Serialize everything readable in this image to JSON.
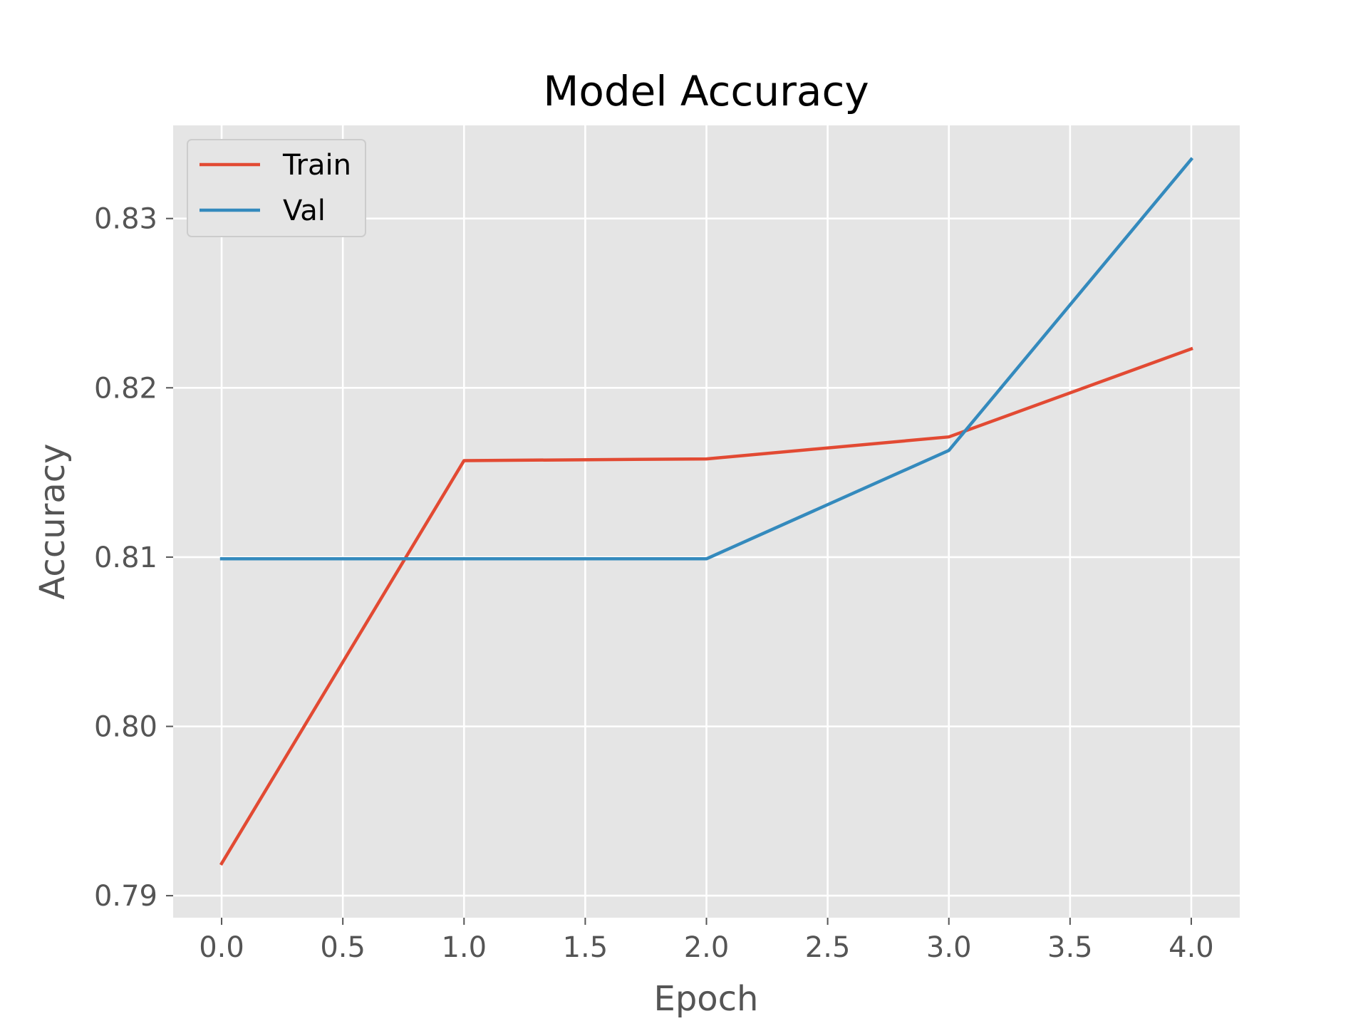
{
  "chart_data": {
    "type": "line",
    "title": "Model Accuracy",
    "xlabel": "Epoch",
    "ylabel": "Accuracy",
    "x": [
      0,
      1,
      2,
      3,
      4
    ],
    "xlim": [
      -0.2,
      4.2
    ],
    "ylim": [
      0.7887,
      0.8355
    ],
    "xticks": [
      0.0,
      0.5,
      1.0,
      1.5,
      2.0,
      2.5,
      3.0,
      3.5,
      4.0
    ],
    "xtick_labels": [
      "0.0",
      "0.5",
      "1.0",
      "1.5",
      "2.0",
      "2.5",
      "3.0",
      "3.5",
      "4.0"
    ],
    "yticks": [
      0.79,
      0.8,
      0.81,
      0.82,
      0.83
    ],
    "ytick_labels": [
      "0.79",
      "0.80",
      "0.81",
      "0.82",
      "0.83"
    ],
    "grid": true,
    "legend_position": "upper-left",
    "series": [
      {
        "name": "Train",
        "color": "#E24A33",
        "values": [
          0.7919,
          0.8157,
          0.8158,
          0.8171,
          0.8223
        ]
      },
      {
        "name": "Val",
        "color": "#348ABD",
        "values": [
          0.8099,
          0.8099,
          0.8099,
          0.8163,
          0.8335
        ]
      }
    ]
  }
}
